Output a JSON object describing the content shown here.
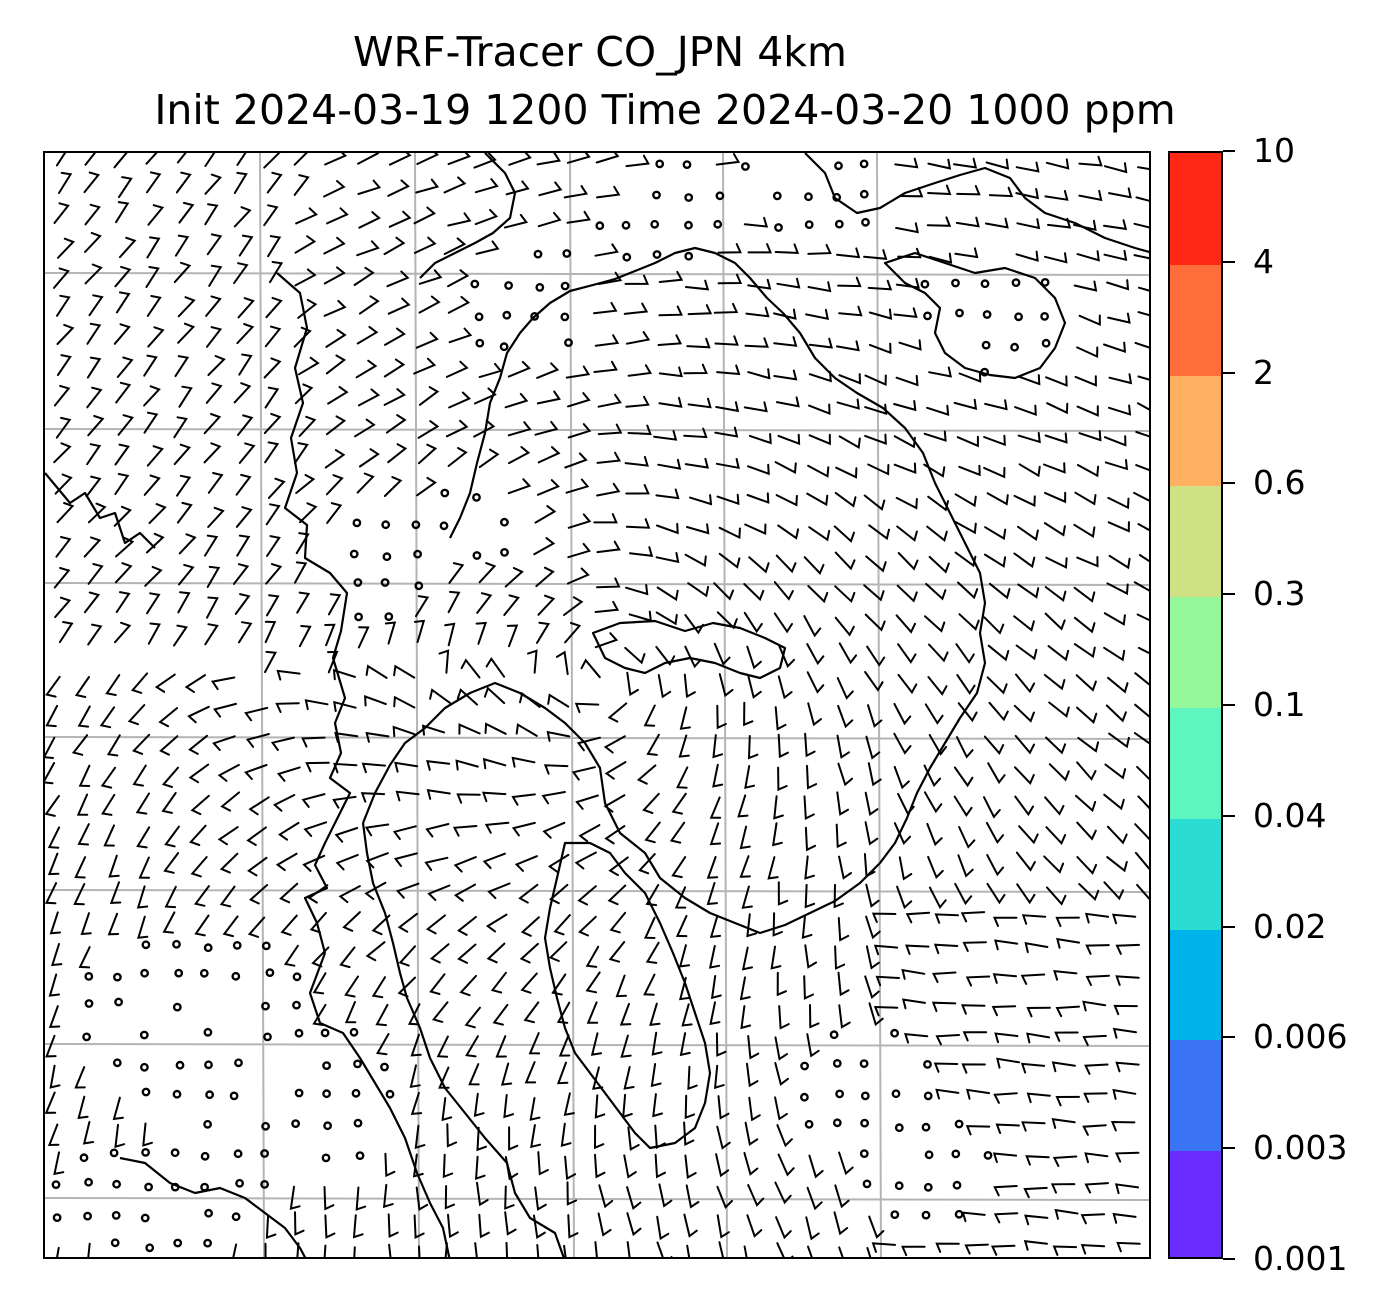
{
  "title": {
    "line1": "WRF-Tracer CO_JPN 4km",
    "line2": "Init 2024-03-19 1200 Time 2024-03-20 1000 ppm"
  },
  "colorbar": {
    "levels": [
      "0.001",
      "0.003",
      "0.006",
      "0.02",
      "0.04",
      "0.1",
      "0.3",
      "0.6",
      "2",
      "4",
      "10"
    ],
    "colors": [
      "#6a2cff",
      "#3a74f2",
      "#00b3ea",
      "#2adcd2",
      "#5ff5c0",
      "#94f79a",
      "#d0e084",
      "#ffb060",
      "#ff6e3a",
      "#ff2814"
    ]
  },
  "map": {
    "gridline_color": "#b4b4b4",
    "wind_barb_color": "#000000"
  }
}
